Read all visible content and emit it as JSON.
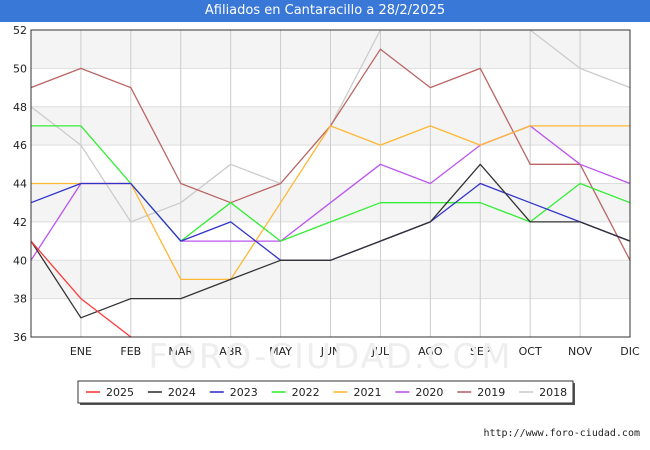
{
  "title": "Afiliados en Cantaracillo a 28/2/2025",
  "credit": "http://www.foro-ciudad.com",
  "watermark": "FORO-CIUDAD.COM",
  "chart_data": {
    "type": "line",
    "categories": [
      "",
      "ENE",
      "FEB",
      "MAR",
      "ABR",
      "MAY",
      "JUN",
      "JUL",
      "AGO",
      "SEP",
      "OCT",
      "NOV",
      "DIC"
    ],
    "ylim": [
      36,
      52
    ],
    "yticks": [
      36,
      38,
      40,
      42,
      44,
      46,
      48,
      50,
      52
    ],
    "grid": true,
    "legend_position": "bottom",
    "series": [
      {
        "name": "2025",
        "color": "#ff3b3b",
        "values": [
          41,
          38,
          36,
          null,
          null,
          null,
          null,
          null,
          null,
          null,
          null,
          null,
          null
        ]
      },
      {
        "name": "2024",
        "color": "#333333",
        "values": [
          41,
          37,
          38,
          38,
          39,
          40,
          40,
          41,
          42,
          45,
          42,
          42,
          41
        ]
      },
      {
        "name": "2023",
        "color": "#3333cc",
        "values": [
          43,
          44,
          44,
          41,
          42,
          40,
          40,
          41,
          42,
          44,
          43,
          42,
          41
        ]
      },
      {
        "name": "2022",
        "color": "#33ee33",
        "values": [
          47,
          47,
          44,
          41,
          43,
          41,
          42,
          43,
          43,
          43,
          42,
          44,
          43
        ]
      },
      {
        "name": "2021",
        "color": "#ffb733",
        "values": [
          44,
          44,
          44,
          39,
          39,
          43,
          47,
          46,
          47,
          46,
          47,
          47,
          47
        ]
      },
      {
        "name": "2020",
        "color": "#bb55ee",
        "values": [
          40,
          44,
          44,
          41,
          41,
          41,
          43,
          45,
          44,
          46,
          47,
          45,
          44
        ]
      },
      {
        "name": "2019",
        "color": "#bb6666",
        "values": [
          49,
          50,
          49,
          44,
          43,
          44,
          47,
          51,
          49,
          50,
          45,
          45,
          40
        ]
      },
      {
        "name": "2018",
        "color": "#cccccc",
        "values": [
          48,
          46,
          42,
          43,
          45,
          44,
          47,
          52,
          52,
          52,
          52,
          50,
          49
        ]
      }
    ]
  }
}
